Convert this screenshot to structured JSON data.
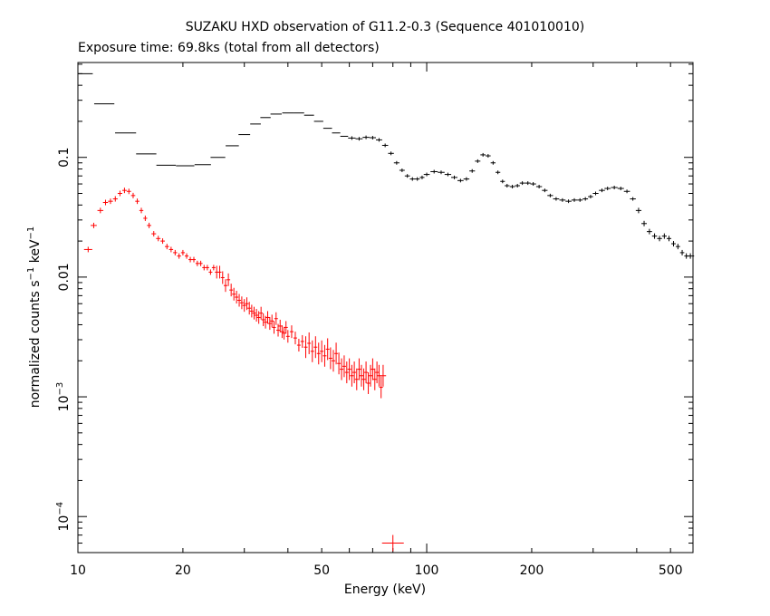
{
  "chart_data": {
    "type": "scatter",
    "title": "SUZAKU HXD observation of G11.2-0.3 (Sequence 401010010)",
    "subtitle": "Exposure time: 69.8ks (total from all detectors)",
    "xlabel": "Energy (keV)",
    "ylabel_parts": {
      "base": "normalized counts s",
      "sup1": "−1",
      "mid": " keV",
      "sup2": "−1"
    },
    "xscale": "log",
    "yscale": "log",
    "xlim": [
      10,
      580
    ],
    "ylim": [
      5e-05,
      0.62
    ],
    "x_ticks": [
      {
        "value": 10,
        "label": "10"
      },
      {
        "value": 20,
        "label": "20"
      },
      {
        "value": 50,
        "label": "50"
      },
      {
        "value": 100,
        "label": "100"
      },
      {
        "value": 200,
        "label": "200"
      },
      {
        "value": 500,
        "label": "500"
      }
    ],
    "y_ticks": [
      {
        "value": 0.0001,
        "base": "10",
        "exp": "−4"
      },
      {
        "value": 0.001,
        "base": "10",
        "exp": "−3"
      },
      {
        "value": 0.01,
        "label": "0.01"
      },
      {
        "value": 0.1,
        "label": "0.1"
      }
    ],
    "series": [
      {
        "color": "#000000",
        "points": [
          [
            10.5,
            0.5
          ],
          [
            11.9,
            0.28
          ],
          [
            13.7,
            0.16
          ],
          [
            15.7,
            0.107
          ],
          [
            17.9,
            0.086
          ],
          [
            20.3,
            0.085
          ],
          [
            22.8,
            0.087
          ],
          [
            25.2,
            0.1
          ],
          [
            27.7,
            0.125
          ],
          [
            30.0,
            0.155
          ],
          [
            32.3,
            0.19
          ],
          [
            34.5,
            0.215
          ],
          [
            37.0,
            0.23
          ],
          [
            40.0,
            0.235
          ],
          [
            43.0,
            0.235
          ],
          [
            46.0,
            0.225
          ],
          [
            49.0,
            0.2
          ],
          [
            52.0,
            0.175
          ],
          [
            55.0,
            0.16
          ],
          [
            58.0,
            0.15
          ],
          [
            61.0,
            0.145
          ],
          [
            64.0,
            0.143
          ],
          [
            67.0,
            0.147
          ],
          [
            70.0,
            0.146
          ],
          [
            73.0,
            0.14
          ],
          [
            76.0,
            0.126
          ],
          [
            79.0,
            0.108
          ],
          [
            82.0,
            0.09
          ],
          [
            85.0,
            0.078
          ],
          [
            88.0,
            0.07
          ],
          [
            91.0,
            0.066
          ],
          [
            94.0,
            0.066
          ],
          [
            97.0,
            0.068
          ],
          [
            100.0,
            0.072
          ],
          [
            105.0,
            0.076
          ],
          [
            110.0,
            0.075
          ],
          [
            115.0,
            0.072
          ],
          [
            120.0,
            0.068
          ],
          [
            125.0,
            0.064
          ],
          [
            130.0,
            0.066
          ],
          [
            135.0,
            0.077
          ],
          [
            140.0,
            0.093
          ],
          [
            145.0,
            0.105
          ],
          [
            150.0,
            0.103
          ],
          [
            155.0,
            0.09
          ],
          [
            160.0,
            0.075
          ],
          [
            165.0,
            0.063
          ],
          [
            170.0,
            0.058
          ],
          [
            176.0,
            0.057
          ],
          [
            182.0,
            0.058
          ],
          [
            188.0,
            0.061
          ],
          [
            195.0,
            0.061
          ],
          [
            202.0,
            0.06
          ],
          [
            210.0,
            0.057
          ],
          [
            218.0,
            0.053
          ],
          [
            226.0,
            0.048
          ],
          [
            235.0,
            0.045
          ],
          [
            245.0,
            0.044
          ],
          [
            255.0,
            0.043
          ],
          [
            265.0,
            0.044
          ],
          [
            275.0,
            0.044
          ],
          [
            285.0,
            0.045
          ],
          [
            295.0,
            0.047
          ],
          [
            305.0,
            0.05
          ],
          [
            318.0,
            0.053
          ],
          [
            330.0,
            0.055
          ],
          [
            345.0,
            0.056
          ],
          [
            360.0,
            0.055
          ],
          [
            375.0,
            0.052
          ],
          [
            390.0,
            0.045
          ],
          [
            405.0,
            0.036
          ],
          [
            420.0,
            0.028
          ],
          [
            435.0,
            0.024
          ],
          [
            450.0,
            0.022
          ],
          [
            465.0,
            0.021
          ],
          [
            480.0,
            0.022
          ],
          [
            495.0,
            0.021
          ],
          [
            510.0,
            0.019
          ],
          [
            525.0,
            0.018
          ],
          [
            540.0,
            0.016
          ],
          [
            555.0,
            0.015
          ],
          [
            570.0,
            0.015
          ]
        ]
      },
      {
        "color": "#ff0000",
        "points": [
          [
            10.7,
            0.017
          ],
          [
            11.1,
            0.027
          ],
          [
            11.6,
            0.036
          ],
          [
            12.0,
            0.042
          ],
          [
            12.4,
            0.043
          ],
          [
            12.8,
            0.045
          ],
          [
            13.2,
            0.05
          ],
          [
            13.6,
            0.053
          ],
          [
            14.0,
            0.052
          ],
          [
            14.4,
            0.048
          ],
          [
            14.8,
            0.043
          ],
          [
            15.2,
            0.036
          ],
          [
            15.6,
            0.031
          ],
          [
            16.0,
            0.027
          ],
          [
            16.5,
            0.023
          ],
          [
            17.0,
            0.021
          ],
          [
            17.5,
            0.02
          ],
          [
            18.0,
            0.018
          ],
          [
            18.5,
            0.017
          ],
          [
            19.0,
            0.016
          ],
          [
            19.5,
            0.015
          ],
          [
            20.0,
            0.016
          ],
          [
            20.5,
            0.015
          ],
          [
            21.0,
            0.014
          ],
          [
            21.5,
            0.014
          ],
          [
            22.0,
            0.013
          ],
          [
            22.5,
            0.013
          ],
          [
            23.0,
            0.012
          ],
          [
            23.5,
            0.012
          ],
          [
            24.0,
            0.011
          ],
          [
            24.5,
            0.012
          ],
          [
            25.0,
            0.011
          ],
          [
            25.5,
            0.011
          ],
          [
            26.0,
            0.0099
          ],
          [
            26.5,
            0.0085
          ],
          [
            27.0,
            0.0095
          ],
          [
            27.5,
            0.0078
          ],
          [
            28.0,
            0.0072
          ],
          [
            28.5,
            0.0068
          ],
          [
            29.0,
            0.0064
          ],
          [
            29.5,
            0.0061
          ],
          [
            30.0,
            0.0058
          ],
          [
            30.5,
            0.006
          ],
          [
            31.0,
            0.0055
          ],
          [
            31.5,
            0.0052
          ],
          [
            32.0,
            0.005
          ],
          [
            32.5,
            0.0048
          ],
          [
            33.0,
            0.0046
          ],
          [
            33.5,
            0.005
          ],
          [
            34.0,
            0.0044
          ],
          [
            34.5,
            0.0042
          ],
          [
            35.0,
            0.0046
          ],
          [
            35.5,
            0.0041
          ],
          [
            36.0,
            0.0043
          ],
          [
            36.5,
            0.0038
          ],
          [
            37.0,
            0.0045
          ],
          [
            37.5,
            0.0036
          ],
          [
            38.0,
            0.0039
          ],
          [
            38.5,
            0.0035
          ],
          [
            39.0,
            0.0034
          ],
          [
            39.5,
            0.0038
          ],
          [
            40.0,
            0.0032
          ],
          [
            41.0,
            0.0035
          ],
          [
            42.0,
            0.0031
          ],
          [
            43.0,
            0.0027
          ],
          [
            44.0,
            0.0029
          ],
          [
            45.0,
            0.0026
          ],
          [
            46.0,
            0.0028
          ],
          [
            47.0,
            0.0024
          ],
          [
            48.0,
            0.0026
          ],
          [
            49.0,
            0.0023
          ],
          [
            50.0,
            0.0024
          ],
          [
            51.0,
            0.0022
          ],
          [
            52.0,
            0.0025
          ],
          [
            53.0,
            0.0021
          ],
          [
            54.0,
            0.002
          ],
          [
            55.0,
            0.0023
          ],
          [
            56.0,
            0.0019
          ],
          [
            57.0,
            0.0017
          ],
          [
            58.0,
            0.0018
          ],
          [
            59.0,
            0.0016
          ],
          [
            60.0,
            0.0017
          ],
          [
            61.0,
            0.0015
          ],
          [
            62.0,
            0.0016
          ],
          [
            63.0,
            0.0014
          ],
          [
            64.0,
            0.0017
          ],
          [
            65.0,
            0.0015
          ],
          [
            66.0,
            0.0014
          ],
          [
            67.0,
            0.0016
          ],
          [
            68.0,
            0.0013
          ],
          [
            69.0,
            0.0015
          ],
          [
            70.0,
            0.0017
          ],
          [
            71.0,
            0.0014
          ],
          [
            72.0,
            0.0016
          ],
          [
            73.0,
            0.0015
          ],
          [
            74.0,
            0.0012
          ],
          [
            75.0,
            0.0015
          ],
          [
            80.0,
            6e-05
          ]
        ]
      }
    ]
  }
}
